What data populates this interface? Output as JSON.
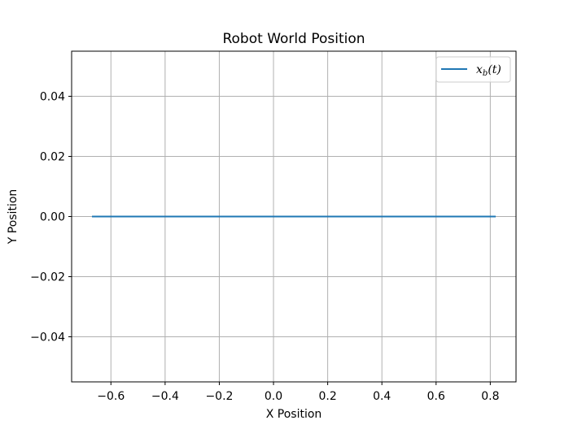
{
  "chart_data": {
    "type": "line",
    "title": "Robot World Position",
    "xlabel": "X Position",
    "ylabel": "Y Position",
    "xlim": [
      -0.745,
      0.895
    ],
    "ylim": [
      -0.055,
      0.055
    ],
    "x_ticks": [
      {
        "value": -0.6,
        "label": "−0.6"
      },
      {
        "value": -0.4,
        "label": "−0.4"
      },
      {
        "value": -0.2,
        "label": "−0.2"
      },
      {
        "value": 0.0,
        "label": "0.0"
      },
      {
        "value": 0.2,
        "label": "0.2"
      },
      {
        "value": 0.4,
        "label": "0.4"
      },
      {
        "value": 0.6,
        "label": "0.6"
      },
      {
        "value": 0.8,
        "label": "0.8"
      }
    ],
    "y_ticks": [
      {
        "value": -0.04,
        "label": "−0.04"
      },
      {
        "value": -0.02,
        "label": "−0.02"
      },
      {
        "value": 0.0,
        "label": "0.00"
      },
      {
        "value": 0.02,
        "label": "0.02"
      },
      {
        "value": 0.04,
        "label": "0.04"
      }
    ],
    "grid": true,
    "legend": {
      "position": "top-right"
    },
    "series": [
      {
        "name_main": "x",
        "name_sub": "b",
        "name_rest": "(t)",
        "color": "#1f77b4",
        "x": [
          -0.67,
          0.82
        ],
        "y": [
          0.0,
          0.0
        ]
      }
    ]
  }
}
